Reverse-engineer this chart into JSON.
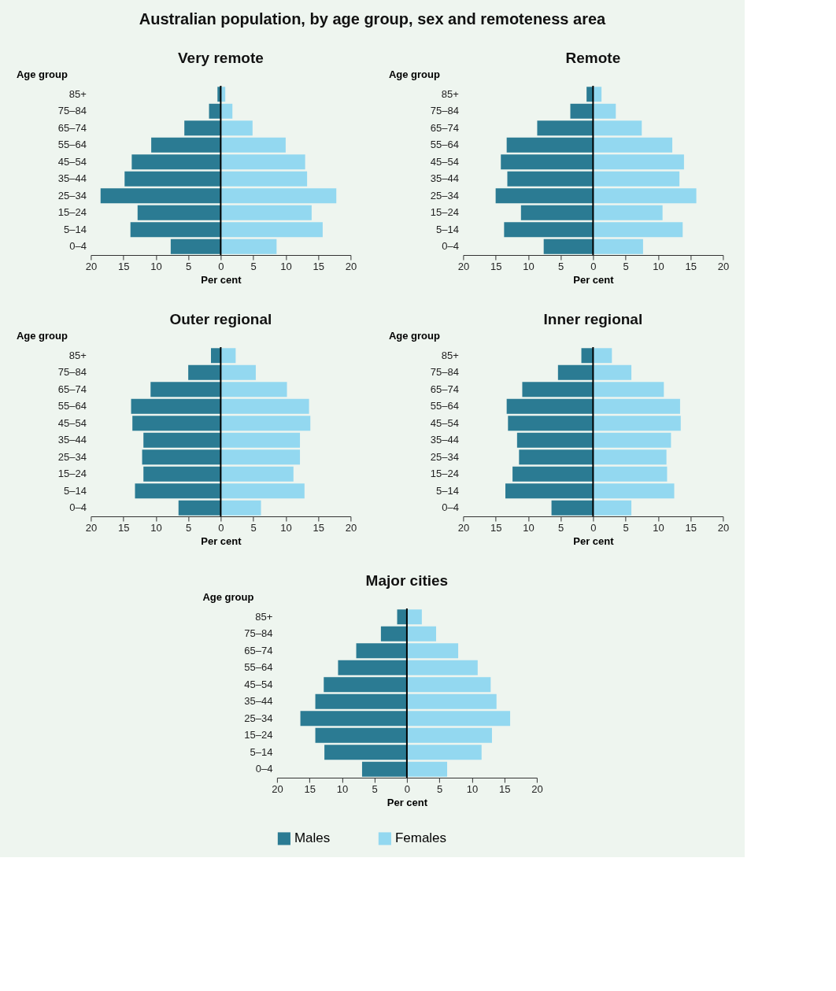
{
  "chart_data": [
    {
      "type": "bar",
      "orientation": "horizontal",
      "title": "Very remote",
      "stacked": true,
      "annotations": [
        "Australian population, by age group, sex and remoteness area"
      ],
      "xlabel": "Per cent",
      "ylabel": "Age group",
      "grid": false,
      "categories": [
        "85+",
        "75–84",
        "65–74",
        "55–64",
        "45–54",
        "35–44",
        "25–34",
        "15–24",
        "5–14",
        "0–4"
      ],
      "xlim": [
        -20,
        20
      ],
      "xticks": [
        {
          "value": -20,
          "label": "20"
        },
        {
          "value": -15,
          "label": "15"
        },
        {
          "value": -10,
          "label": "10"
        },
        {
          "value": -5,
          "label": "5"
        },
        0,
        5,
        10,
        15,
        20
      ],
      "ref_lines": [
        {
          "axis": "x",
          "value": 0,
          "color": "#000000"
        }
      ],
      "series": [
        {
          "color": "#2b7b93",
          "values": [
            -0.5,
            -1.8,
            -5.6,
            -10.7,
            -13.7,
            -14.8,
            -18.5,
            -12.8,
            -13.9,
            -7.7
          ]
        },
        {
          "color": "#93d8f0",
          "values": [
            0.7,
            1.8,
            4.9,
            10.0,
            13.0,
            13.3,
            17.8,
            14.0,
            15.7,
            8.6
          ]
        }
      ]
    },
    {
      "type": "bar",
      "orientation": "horizontal",
      "title": "Remote",
      "stacked": true,
      "xlabel": "Per cent",
      "ylabel": "Age group",
      "grid": false,
      "categories": [
        "85+",
        "75–84",
        "65–74",
        "55–64",
        "45–54",
        "35–44",
        "25–34",
        "15–24",
        "5–14",
        "0–4"
      ],
      "xlim": [
        -20,
        20
      ],
      "xticks": [
        {
          "value": -20,
          "label": "20"
        },
        {
          "value": -15,
          "label": "15"
        },
        {
          "value": -10,
          "label": "10"
        },
        {
          "value": -5,
          "label": "5"
        },
        0,
        5,
        10,
        15,
        20
      ],
      "ref_lines": [
        {
          "axis": "x",
          "value": 0,
          "color": "#000000"
        }
      ],
      "series": [
        {
          "color": "#2b7b93",
          "values": [
            -1.0,
            -3.5,
            -8.6,
            -13.3,
            -14.2,
            -13.2,
            -15.0,
            -11.1,
            -13.7,
            -7.6
          ]
        },
        {
          "color": "#93d8f0",
          "values": [
            1.3,
            3.5,
            7.5,
            12.2,
            14.0,
            13.3,
            15.9,
            10.7,
            13.8,
            7.7
          ]
        }
      ]
    },
    {
      "type": "bar",
      "orientation": "horizontal",
      "title": "Outer regional",
      "stacked": true,
      "xlabel": "Per cent",
      "ylabel": "Age group",
      "grid": false,
      "categories": [
        "85+",
        "75–84",
        "65–74",
        "55–64",
        "45–54",
        "35–44",
        "25–34",
        "15–24",
        "5–14",
        "0–4"
      ],
      "xlim": [
        -20,
        20
      ],
      "xticks": [
        {
          "value": -20,
          "label": "20"
        },
        {
          "value": -15,
          "label": "15"
        },
        {
          "value": -10,
          "label": "10"
        },
        {
          "value": -5,
          "label": "5"
        },
        0,
        5,
        10,
        15,
        20
      ],
      "ref_lines": [
        {
          "axis": "x",
          "value": 0,
          "color": "#000000"
        }
      ],
      "series": [
        {
          "color": "#2b7b93",
          "values": [
            -1.5,
            -5.0,
            -10.8,
            -13.8,
            -13.6,
            -11.9,
            -12.1,
            -11.9,
            -13.2,
            -6.5
          ]
        },
        {
          "color": "#93d8f0",
          "values": [
            2.3,
            5.4,
            10.2,
            13.6,
            13.8,
            12.2,
            12.2,
            11.2,
            12.9,
            6.2
          ]
        }
      ]
    },
    {
      "type": "bar",
      "orientation": "horizontal",
      "title": "Inner regional",
      "stacked": true,
      "xlabel": "Per cent",
      "ylabel": "Age group",
      "grid": false,
      "categories": [
        "85+",
        "75–84",
        "65–74",
        "55–64",
        "45–54",
        "35–44",
        "25–34",
        "15–24",
        "5–14",
        "0–4"
      ],
      "xlim": [
        -20,
        20
      ],
      "xticks": [
        {
          "value": -20,
          "label": "20"
        },
        {
          "value": -15,
          "label": "15"
        },
        {
          "value": -10,
          "label": "10"
        },
        {
          "value": -5,
          "label": "5"
        },
        0,
        5,
        10,
        15,
        20
      ],
      "ref_lines": [
        {
          "axis": "x",
          "value": 0,
          "color": "#000000"
        }
      ],
      "series": [
        {
          "color": "#2b7b93",
          "values": [
            -1.8,
            -5.4,
            -10.9,
            -13.3,
            -13.1,
            -11.7,
            -11.4,
            -12.4,
            -13.5,
            -6.4
          ]
        },
        {
          "color": "#93d8f0",
          "values": [
            2.9,
            5.9,
            10.9,
            13.4,
            13.5,
            12.0,
            11.3,
            11.4,
            12.5,
            5.9
          ]
        }
      ]
    },
    {
      "type": "bar",
      "orientation": "horizontal",
      "title": "Major cities",
      "stacked": true,
      "xlabel": "Per cent",
      "ylabel": "Age group",
      "legend": "bottom",
      "grid": false,
      "categories": [
        "85+",
        "75–84",
        "65–74",
        "55–64",
        "45–54",
        "35–44",
        "25–34",
        "15–24",
        "5–14",
        "0–4"
      ],
      "xlim": [
        -20,
        20
      ],
      "xticks": [
        {
          "value": -20,
          "label": "20"
        },
        {
          "value": -15,
          "label": "15"
        },
        {
          "value": -10,
          "label": "10"
        },
        {
          "value": -5,
          "label": "5"
        },
        0,
        5,
        10,
        15,
        20
      ],
      "ref_lines": [
        {
          "axis": "x",
          "value": 0,
          "color": "#000000"
        }
      ],
      "series": [
        {
          "name": "Males",
          "color": "#2b7b93",
          "values": [
            -1.5,
            -4.0,
            -7.8,
            -10.6,
            -12.8,
            -14.1,
            -16.4,
            -14.1,
            -12.7,
            -6.9
          ]
        },
        {
          "name": "Females",
          "color": "#93d8f0",
          "values": [
            2.3,
            4.5,
            7.9,
            10.9,
            12.9,
            13.8,
            15.9,
            13.1,
            11.5,
            6.2
          ]
        }
      ]
    }
  ]
}
